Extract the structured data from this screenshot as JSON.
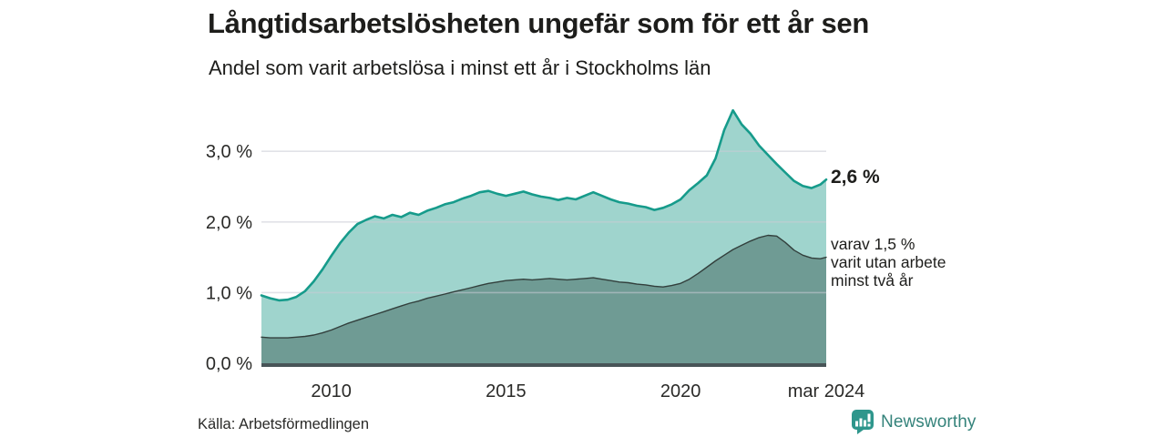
{
  "chart_data": {
    "type": "area",
    "title": "Långtidsarbetslösheten ungefär som för ett år sen",
    "subtitle": "Andel som varit arbetslösa i minst ett år i Stockholms län",
    "xlabel": "",
    "ylabel": "",
    "xlim": [
      2008.0,
      2024.17
    ],
    "ylim": [
      0,
      3.75
    ],
    "grid": true,
    "legend": "none",
    "x": [
      2008.0,
      2008.25,
      2008.5,
      2008.75,
      2009.0,
      2009.25,
      2009.5,
      2009.75,
      2010.0,
      2010.25,
      2010.5,
      2010.75,
      2011.0,
      2011.25,
      2011.5,
      2011.75,
      2012.0,
      2012.25,
      2012.5,
      2012.75,
      2013.0,
      2013.25,
      2013.5,
      2013.75,
      2014.0,
      2014.25,
      2014.5,
      2014.75,
      2015.0,
      2015.25,
      2015.5,
      2015.75,
      2016.0,
      2016.25,
      2016.5,
      2016.75,
      2017.0,
      2017.25,
      2017.5,
      2017.75,
      2018.0,
      2018.25,
      2018.5,
      2018.75,
      2019.0,
      2019.25,
      2019.5,
      2019.75,
      2020.0,
      2020.25,
      2020.5,
      2020.75,
      2021.0,
      2021.25,
      2021.5,
      2021.75,
      2022.0,
      2022.25,
      2022.5,
      2022.75,
      2023.0,
      2023.25,
      2023.5,
      2023.75,
      2024.0,
      2024.17
    ],
    "series": [
      {
        "name": "Andel arbetslösa minst ett år",
        "values": [
          0.96,
          0.92,
          0.89,
          0.9,
          0.94,
          1.02,
          1.16,
          1.33,
          1.52,
          1.7,
          1.85,
          1.97,
          2.03,
          2.08,
          2.05,
          2.1,
          2.07,
          2.13,
          2.1,
          2.16,
          2.2,
          2.25,
          2.28,
          2.33,
          2.37,
          2.42,
          2.44,
          2.4,
          2.37,
          2.4,
          2.43,
          2.39,
          2.36,
          2.34,
          2.31,
          2.34,
          2.32,
          2.37,
          2.42,
          2.37,
          2.32,
          2.28,
          2.26,
          2.23,
          2.21,
          2.17,
          2.2,
          2.25,
          2.32,
          2.45,
          2.55,
          2.66,
          2.9,
          3.3,
          3.58,
          3.38,
          3.25,
          3.08,
          2.95,
          2.82,
          2.7,
          2.58,
          2.51,
          2.48,
          2.53,
          2.6
        ],
        "fill": "#9fd4cd",
        "line": "#169b8b",
        "line_width": 2.6
      },
      {
        "name": "varav arbetslösa minst två år",
        "values": [
          0.37,
          0.36,
          0.36,
          0.36,
          0.37,
          0.38,
          0.4,
          0.43,
          0.47,
          0.52,
          0.57,
          0.61,
          0.65,
          0.69,
          0.73,
          0.77,
          0.81,
          0.85,
          0.88,
          0.92,
          0.95,
          0.98,
          1.01,
          1.04,
          1.07,
          1.1,
          1.13,
          1.15,
          1.17,
          1.18,
          1.19,
          1.18,
          1.19,
          1.2,
          1.19,
          1.18,
          1.19,
          1.2,
          1.21,
          1.19,
          1.17,
          1.15,
          1.14,
          1.12,
          1.11,
          1.09,
          1.08,
          1.1,
          1.13,
          1.19,
          1.27,
          1.36,
          1.45,
          1.53,
          1.61,
          1.67,
          1.73,
          1.78,
          1.81,
          1.8,
          1.71,
          1.6,
          1.53,
          1.49,
          1.48,
          1.5
        ],
        "fill": "#6f9b94",
        "line": "#323f3c",
        "line_width": 1.4
      }
    ],
    "xticks": [
      {
        "v": 2010,
        "label": "2010"
      },
      {
        "v": 2015,
        "label": "2015"
      },
      {
        "v": 2020,
        "label": "2020"
      },
      {
        "v": 2024.17,
        "label": "mar 2024"
      }
    ],
    "yticks": [
      {
        "v": 0,
        "label": "0,0 %"
      },
      {
        "v": 1,
        "label": "1,0 %"
      },
      {
        "v": 2,
        "label": "2,0 %"
      },
      {
        "v": 3,
        "label": "3,0 %"
      }
    ],
    "annotations": {
      "latest_total": "2,6 %",
      "two_year_note": "varav 1,5 %\nvarit utan arbete\nminst två år"
    },
    "colors": {
      "gridline": "#c9cbd6",
      "axis_line": "#485457",
      "text": "#2a2a28"
    }
  },
  "footer": {
    "source": "Källa: Arbetsförmedlingen",
    "brand": "Newsworthy",
    "brand_color": "#35837b",
    "brand_icon_color": "#2e968c"
  }
}
